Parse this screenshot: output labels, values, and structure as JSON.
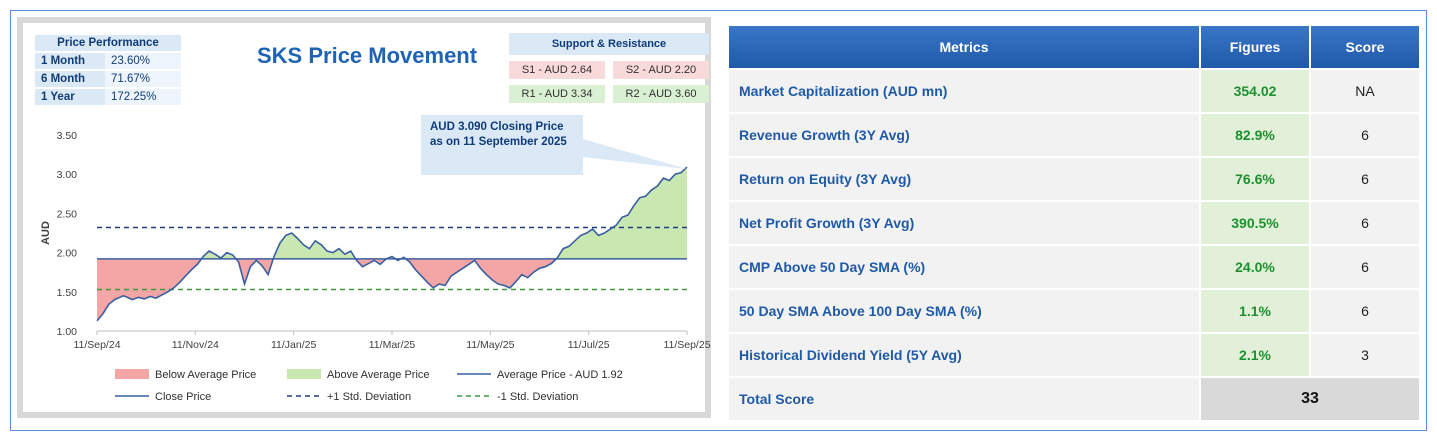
{
  "chart_title": "SKS Price Movement",
  "performance": {
    "header": "Price Performance",
    "rows": [
      {
        "label": "1 Month",
        "value": "23.60%"
      },
      {
        "label": "6 Month",
        "value": "71.67%"
      },
      {
        "label": "1 Year",
        "value": "172.25%"
      }
    ]
  },
  "support_resistance": {
    "header": "Support & Resistance",
    "s1": "S1 - AUD 2.64",
    "s2": "S2 - AUD 2.20",
    "r1": "R1 - AUD 3.34",
    "r2": "R2 - AUD 3.60"
  },
  "callout": "AUD 3.090 Closing Price as on 11 September 2025",
  "colors": {
    "below_fill": "#f4a5a5",
    "above_fill": "#c9e7b1",
    "close_line": "#3a5fa0",
    "avg_line": "#3a5fa0",
    "plus_sd": "#1f3d7a",
    "minus_sd": "#3d9a3d",
    "header_blue": "#1f5aa8",
    "figure_green": "#1e8f2e"
  },
  "chart_data": {
    "type": "area",
    "ylabel": "AUD",
    "ylim": [
      1.0,
      3.5
    ],
    "y_ticks": [
      "1.00",
      "1.50",
      "2.00",
      "2.50",
      "3.00",
      "3.50"
    ],
    "x_tick_labels": [
      "11/Sep/24",
      "11/Nov/24",
      "11/Jan/25",
      "11/Mar/25",
      "11/May/25",
      "11/Jul/25",
      "11/Sep/25"
    ],
    "average_price": 1.92,
    "plus_1_sd": 2.32,
    "minus_1_sd": 1.53,
    "close_price": {
      "t": [
        0,
        0.01,
        0.02,
        0.03,
        0.045,
        0.06,
        0.07,
        0.08,
        0.09,
        0.1,
        0.11,
        0.12,
        0.13,
        0.14,
        0.15,
        0.16,
        0.17,
        0.18,
        0.19,
        0.2,
        0.21,
        0.22,
        0.23,
        0.24,
        0.25,
        0.26,
        0.27,
        0.28,
        0.29,
        0.3,
        0.31,
        0.32,
        0.33,
        0.34,
        0.35,
        0.36,
        0.37,
        0.38,
        0.39,
        0.4,
        0.41,
        0.42,
        0.43,
        0.44,
        0.45,
        0.46,
        0.47,
        0.48,
        0.49,
        0.5,
        0.51,
        0.52,
        0.53,
        0.54,
        0.55,
        0.56,
        0.57,
        0.58,
        0.59,
        0.6,
        0.61,
        0.62,
        0.63,
        0.64,
        0.65,
        0.66,
        0.67,
        0.68,
        0.69,
        0.7,
        0.71,
        0.72,
        0.73,
        0.74,
        0.75,
        0.76,
        0.77,
        0.78,
        0.79,
        0.8,
        0.81,
        0.82,
        0.83,
        0.84,
        0.85,
        0.86,
        0.87,
        0.88,
        0.89,
        0.9,
        0.91,
        0.92,
        0.93,
        0.94,
        0.95,
        0.96,
        0.97,
        0.98,
        0.99,
        1.0
      ],
      "values": [
        1.13,
        1.22,
        1.34,
        1.4,
        1.45,
        1.4,
        1.43,
        1.41,
        1.44,
        1.42,
        1.46,
        1.5,
        1.55,
        1.62,
        1.7,
        1.78,
        1.85,
        1.95,
        2.02,
        1.98,
        1.93,
        2.0,
        1.97,
        1.88,
        1.6,
        1.82,
        1.9,
        1.83,
        1.72,
        1.95,
        2.12,
        2.22,
        2.25,
        2.18,
        2.1,
        2.05,
        2.15,
        2.1,
        2.02,
        2.0,
        2.05,
        1.98,
        2.02,
        1.9,
        1.82,
        1.86,
        1.9,
        1.85,
        1.92,
        1.95,
        1.9,
        1.94,
        1.88,
        1.78,
        1.7,
        1.62,
        1.55,
        1.6,
        1.58,
        1.7,
        1.75,
        1.8,
        1.85,
        1.9,
        1.8,
        1.72,
        1.65,
        1.6,
        1.58,
        1.55,
        1.63,
        1.72,
        1.68,
        1.75,
        1.8,
        1.82,
        1.86,
        1.93,
        2.05,
        2.08,
        2.15,
        2.22,
        2.25,
        2.3,
        2.22,
        2.25,
        2.3,
        2.35,
        2.45,
        2.48,
        2.6,
        2.7,
        2.72,
        2.8,
        2.85,
        2.95,
        2.92,
        3.0,
        3.02,
        3.09
      ]
    },
    "legend": [
      "Below Average Price",
      "Above Average Price",
      "Average Price - AUD 1.92",
      "Close Price",
      "+1 Std. Deviation",
      "-1 Std. Deviation"
    ]
  },
  "metrics": {
    "headers": [
      "Metrics",
      "Figures",
      "Score"
    ],
    "rows": [
      {
        "metric": "Market Capitalization (AUD mn)",
        "figure": "354.02",
        "score": "NA"
      },
      {
        "metric": "Revenue Growth (3Y Avg)",
        "figure": "82.9%",
        "score": "6"
      },
      {
        "metric": "Return on Equity (3Y Avg)",
        "figure": "76.6%",
        "score": "6"
      },
      {
        "metric": "Net Profit Growth (3Y Avg)",
        "figure": "390.5%",
        "score": "6"
      },
      {
        "metric": "CMP Above 50 Day SMA (%)",
        "figure": "24.0%",
        "score": "6"
      },
      {
        "metric": "50 Day SMA Above 100 Day SMA (%)",
        "figure": "1.1%",
        "score": "6"
      },
      {
        "metric": "Historical Dividend Yield (5Y Avg)",
        "figure": "2.1%",
        "score": "3"
      }
    ],
    "total_label": "Total Score",
    "total_value": "33"
  }
}
